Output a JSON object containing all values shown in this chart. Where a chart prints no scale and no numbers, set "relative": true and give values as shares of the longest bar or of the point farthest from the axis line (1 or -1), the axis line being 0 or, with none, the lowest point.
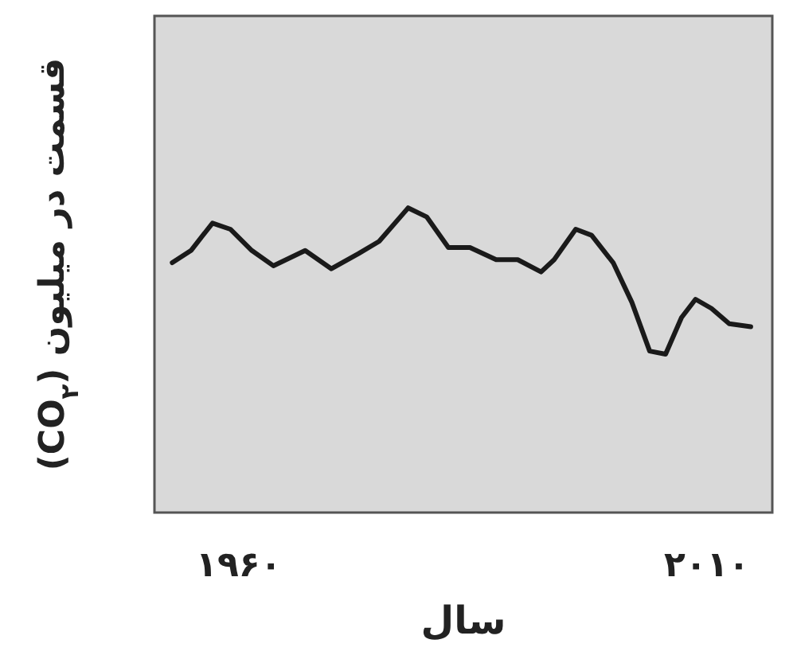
{
  "chart_data": {
    "type": "line",
    "xlabel": "سال",
    "ylabel": "قسمت در میلیون (CO$_{۲}$)",
    "relative": true,
    "color": "#1a1a1a",
    "x": [
      1952.9,
      1954.9,
      1957.2,
      1959.1,
      1961.4,
      1963.7,
      1967.1,
      1969.9,
      1972.8,
      1975.0,
      1978.1,
      1980.1,
      1982.4,
      1984.7,
      1987.5,
      1989.8,
      1992.3,
      1993.7,
      1996.0,
      1997.7,
      2000.0,
      2002.0,
      2003.9,
      2005.6,
      2007.3,
      2008.8,
      2010.5,
      2012.4,
      2014.7
    ],
    "values": [
      0.82,
      0.86,
      0.95,
      0.93,
      0.86,
      0.81,
      0.86,
      0.8,
      0.85,
      0.89,
      1,
      0.97,
      0.87,
      0.87,
      0.83,
      0.83,
      0.79,
      0.83,
      0.93,
      0.91,
      0.82,
      0.69,
      0.53,
      0.52,
      0.64,
      0.7,
      0.67,
      0.62,
      0.61
    ],
    "xlim": [
      1951.0,
      2017.0
    ],
    "xticks": [
      {
        "value": 1960,
        "label": "۱۹۶۰"
      },
      {
        "value": 2010,
        "label": "۲۰۱۰"
      }
    ]
  }
}
